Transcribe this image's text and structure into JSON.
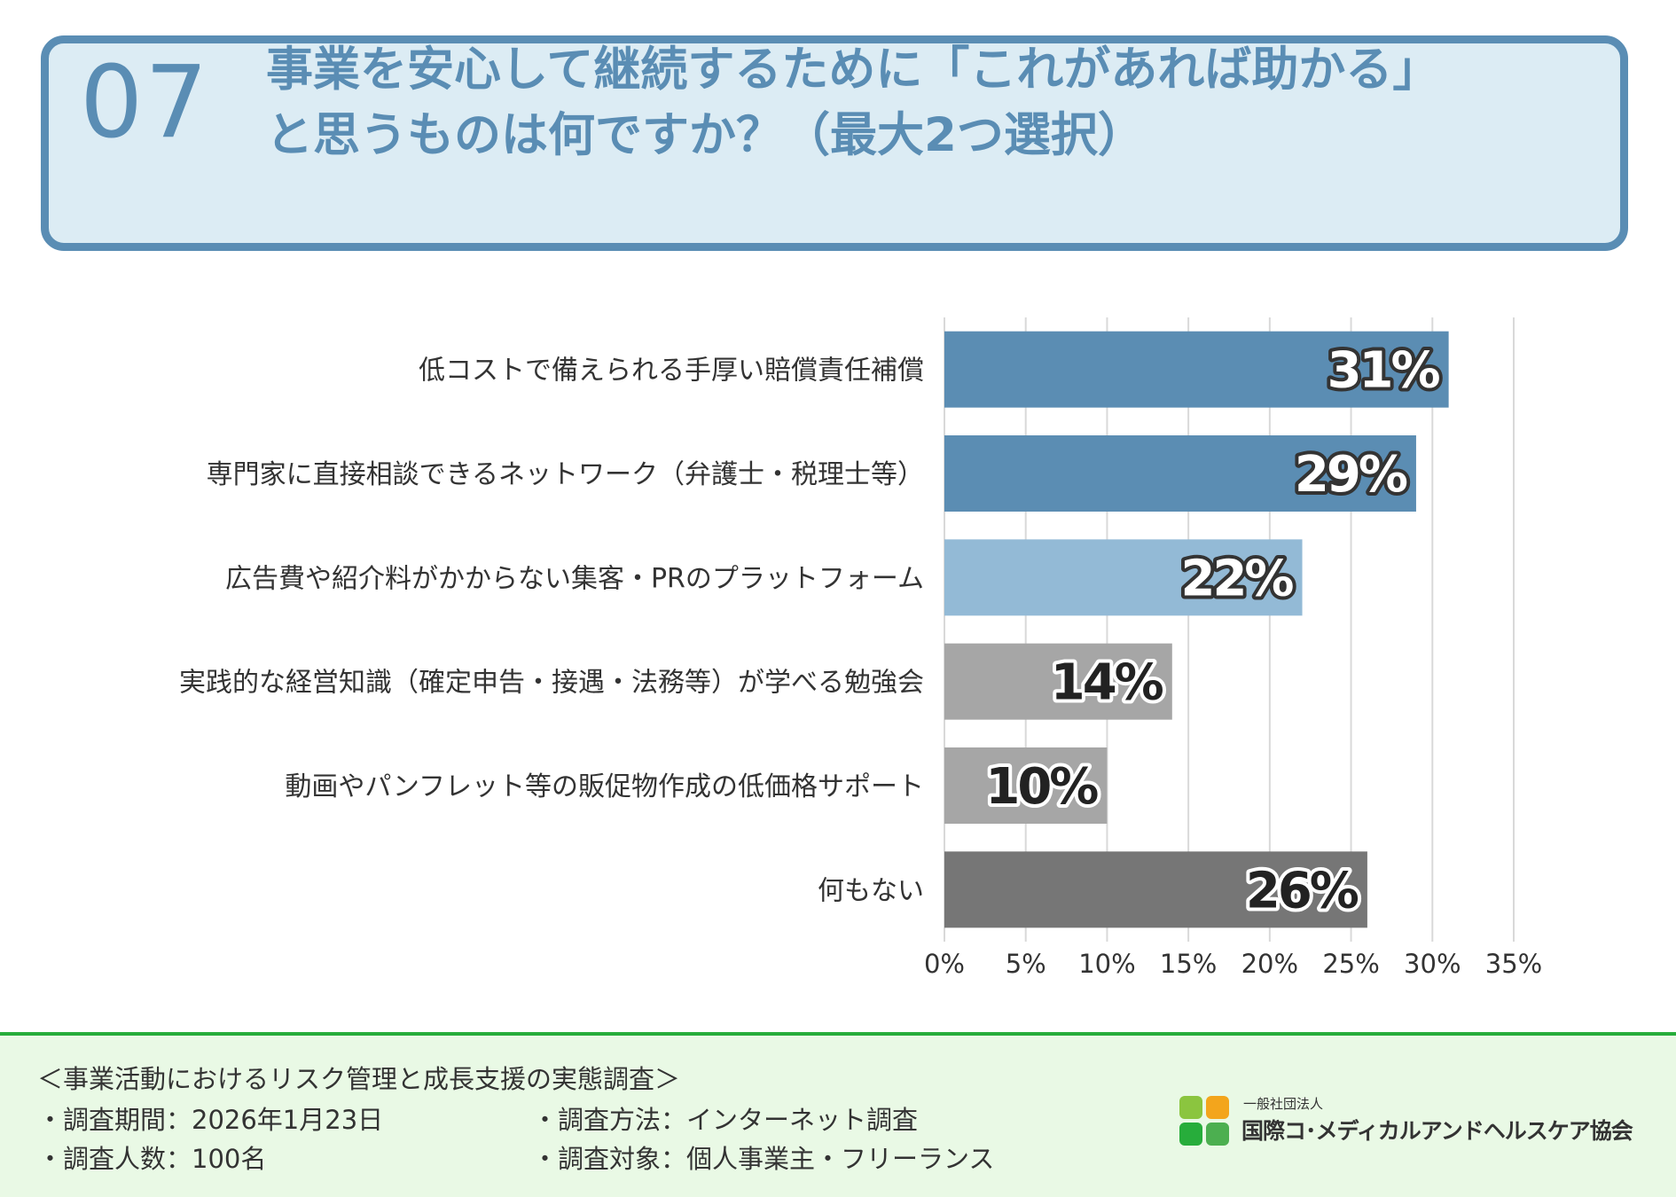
{
  "header": {
    "number": "07",
    "title_line1": "事業を安心して継続するために「これがあれば助かる」",
    "title_line2": "と思うものは何ですか？（最大2つ選択）"
  },
  "chart_data": {
    "type": "bar",
    "orientation": "horizontal",
    "categories": [
      "低コストで備えられる手厚い賠償責任補償",
      "専門家に直接相談できるネットワーク（弁護士・税理士等）",
      "広告費や紹介料がかからない集客・PRのプラットフォーム",
      "実践的な経営知識（確定申告・接遇・法務等）が学べる勉強会",
      "動画やパンフレット等の販促物作成の低価格サポート",
      "何もない"
    ],
    "values": [
      31,
      29,
      22,
      14,
      10,
      26
    ],
    "value_labels": [
      "31%",
      "29%",
      "22%",
      "14%",
      "10%",
      "26%"
    ],
    "bar_colors": [
      "#5b8db3",
      "#5b8db3",
      "#93bad6",
      "#a6a6a6",
      "#a6a6a6",
      "#767676"
    ],
    "label_fill": [
      "#ffffff",
      "#ffffff",
      "#ffffff",
      "#222222",
      "#222222",
      "#222222"
    ],
    "label_stroke": [
      "#333333",
      "#333333",
      "#333333",
      "#ffffff",
      "#ffffff",
      "#ffffff"
    ],
    "xlim": [
      0,
      35
    ],
    "x_ticks": [
      "0%",
      "5%",
      "10%",
      "15%",
      "20%",
      "25%",
      "30%",
      "35%"
    ],
    "grid": true
  },
  "footer": {
    "survey_title": "＜事業活動におけるリスク管理と成長支援の実態調査＞",
    "period": "・調査期間：2026年1月23日",
    "count": "・調査人数：100名",
    "method": "・調査方法：インターネット調査",
    "target": "・調査対象：個人事業主・フリーランス",
    "org_type": "一般社団法人",
    "org_name": "国際コ･メディカルアンドヘルスケア協会",
    "logo_colors": [
      "#f3a51c",
      "#27ad3b",
      "#8bc53f",
      "#4caf50"
    ]
  }
}
